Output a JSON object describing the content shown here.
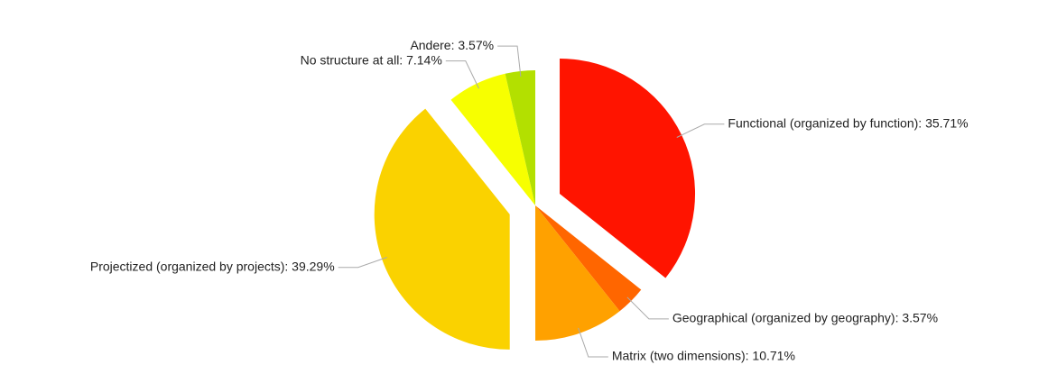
{
  "chart_data": {
    "type": "pie",
    "labels": [
      "Functional (organized by function): 35.71%",
      "Geographical (organized by geography): 3.57%",
      "Matrix (two dimensions): 10.71%",
      "Projectized (organized by projects): 39.29%",
      "No structure at all: 7.14%",
      "Andere: 3.57%"
    ],
    "values": [
      35.71,
      3.57,
      10.71,
      39.29,
      7.14,
      3.57
    ],
    "colors": [
      "#ff1400",
      "#ff6600",
      "#ffa100",
      "#fad200",
      "#f7ff00",
      "#b3e000"
    ],
    "exploded": [
      true,
      false,
      false,
      true,
      false,
      false
    ]
  }
}
